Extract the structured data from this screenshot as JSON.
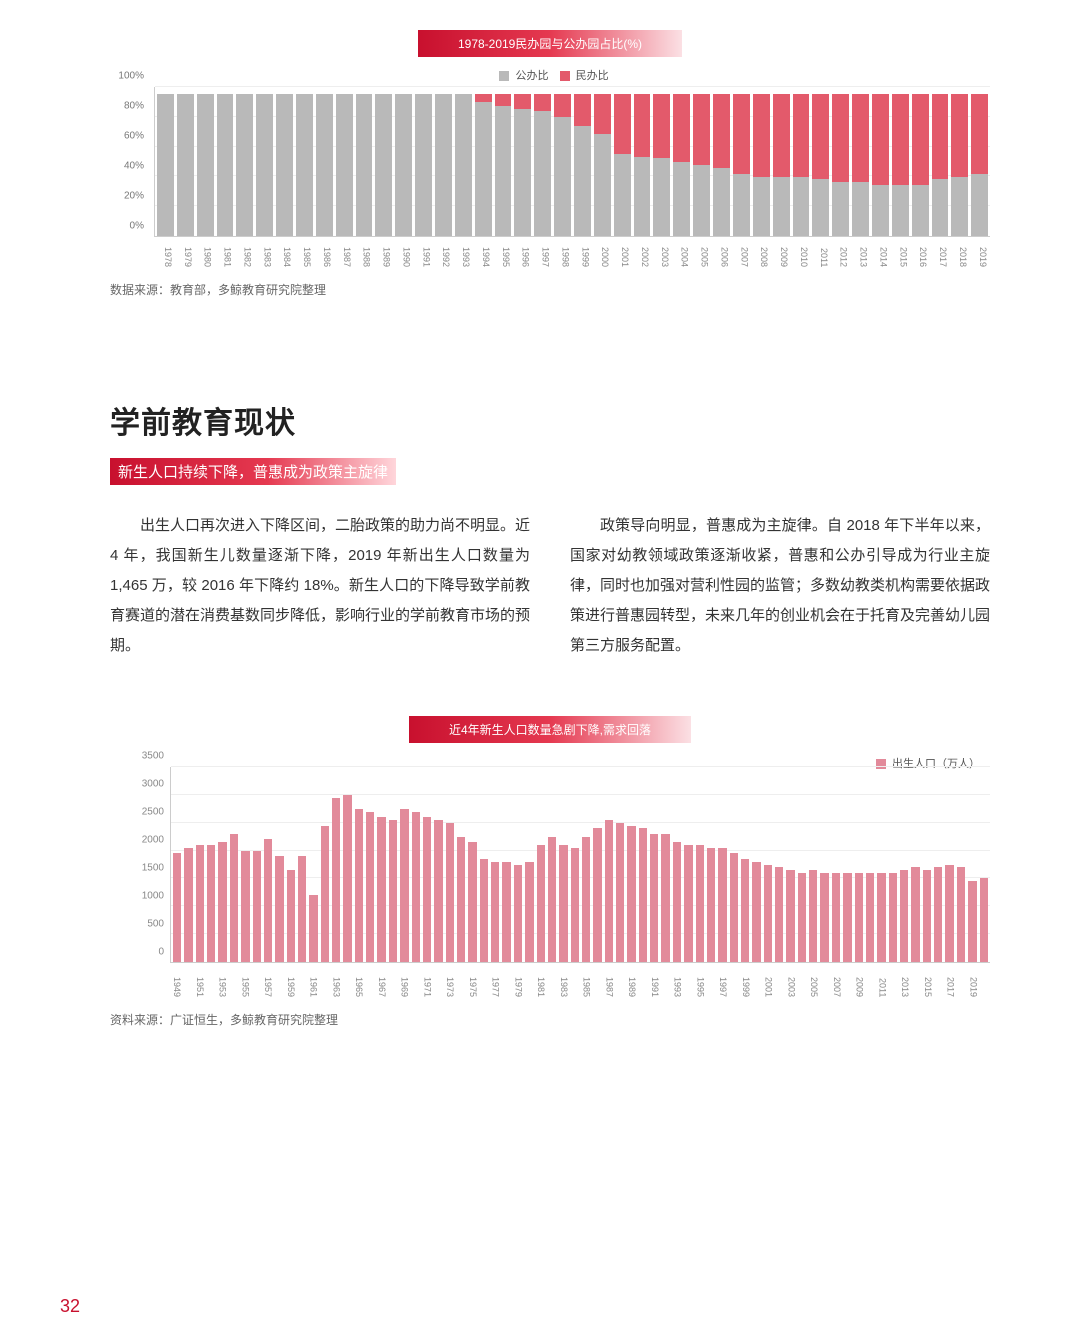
{
  "page_number": "32",
  "colors": {
    "brand_red": "#c8102e",
    "banner_gradient_from": "#c8102e",
    "banner_gradient_to": "#fbe0e4",
    "chart1_public": "#b9b9b9",
    "chart1_private": "#e35a6b",
    "chart2_bar": "#e28a9a",
    "grid": "#eeeeee",
    "axis": "#cccccc",
    "text_body": "#333333",
    "text_muted": "#666666",
    "background": "#ffffff"
  },
  "chart1": {
    "type": "stacked-bar",
    "title": "1978-2019民办园与公办园占比(%)",
    "legend": {
      "public": "公办比",
      "private": "民办比"
    },
    "ylim": [
      0,
      100
    ],
    "ytick_step": 20,
    "yticks": [
      "0%",
      "20%",
      "40%",
      "60%",
      "80%",
      "100%"
    ],
    "years": [
      "1978",
      "1979",
      "1980",
      "1981",
      "1982",
      "1983",
      "1984",
      "1985",
      "1986",
      "1987",
      "1988",
      "1989",
      "1990",
      "1991",
      "1992",
      "1993",
      "1994",
      "1995",
      "1996",
      "1997",
      "1998",
      "1999",
      "2000",
      "2001",
      "2002",
      "2003",
      "2004",
      "2005",
      "2006",
      "2007",
      "2008",
      "2009",
      "2010",
      "2011",
      "2012",
      "2013",
      "2014",
      "2015",
      "2016",
      "2017",
      "2018",
      "2019"
    ],
    "private_pct": [
      0,
      0,
      0,
      0,
      0,
      0,
      0,
      0,
      0,
      0,
      0,
      0,
      0,
      0,
      0,
      0,
      5,
      8,
      10,
      12,
      16,
      22,
      28,
      42,
      44,
      45,
      48,
      50,
      52,
      56,
      58,
      58,
      58,
      60,
      62,
      62,
      64,
      64,
      64,
      60,
      58,
      56
    ],
    "bar_full_scale_pct": 95
  },
  "chart1_source": "数据来源：教育部，多鲸教育研究院整理",
  "section": {
    "heading": "学前教育现状",
    "subtitle": "新生人口持续下降，普惠成为政策主旋律",
    "col_left": "出生人口再次进入下降区间，二胎政策的助力尚不明显。近 4 年，我国新生儿数量逐渐下降，2019 年新出生人口数量为 1,465 万，较 2016 年下降约 18%。新生人口的下降导致学前教育赛道的潜在消费基数同步降低，影响行业的学前教育市场的预期。",
    "col_right": "政策导向明显，普惠成为主旋律。自 2018 年下半年以来，国家对幼教领域政策逐渐收紧，普惠和公办引导成为行业主旋律，同时也加强对营利性园的监管；多数幼教类机构需要依据政策进行普惠园转型，未来几年的创业机会在于托育及完善幼儿园第三方服务配置。"
  },
  "chart2": {
    "type": "bar",
    "title": "近4年新生人口数量急剧下降,需求回落",
    "legend": "出生人口（万人）",
    "ylim": [
      0,
      3500
    ],
    "ytick_step": 500,
    "yticks": [
      "0",
      "500",
      "1000",
      "1500",
      "2000",
      "2500",
      "3000",
      "3500"
    ],
    "years": [
      "1949",
      "1951",
      "1953",
      "1955",
      "1957",
      "1959",
      "1961",
      "1963",
      "1965",
      "1967",
      "1969",
      "1971",
      "1973",
      "1975",
      "1977",
      "1979",
      "1981",
      "1983",
      "1985",
      "1987",
      "1989",
      "1991",
      "1993",
      "1995",
      "1997",
      "1999",
      "2001",
      "2003",
      "2005",
      "2007",
      "2009",
      "2011",
      "2013",
      "2015",
      "2017",
      "2019"
    ],
    "values_1": [
      1950,
      2100,
      2150,
      2000,
      2200,
      1650,
      1200,
      2950,
      2750,
      2600,
      2750,
      2600,
      2500,
      2150,
      1800,
      1750,
      2100,
      2100,
      2250,
      2550,
      2450,
      2300,
      2150,
      2100,
      2050,
      1850,
      1750,
      1650,
      1650,
      1600,
      1600,
      1600,
      1650,
      1650,
      1750,
      1450
    ],
    "values_2": [
      2050,
      2100,
      2300,
      2000,
      1900,
      1900,
      2450,
      3000,
      2700,
      2550,
      2700,
      2550,
      2250,
      1850,
      1800,
      1800,
      2250,
      2050,
      2400,
      2500,
      2400,
      2300,
      2100,
      2050,
      1950,
      1800,
      1700,
      1600,
      1600,
      1600,
      1600,
      1600,
      1700,
      1700,
      1700,
      1500
    ]
  },
  "chart2_source": "资料来源：广证恒生，多鲸教育研究院整理"
}
